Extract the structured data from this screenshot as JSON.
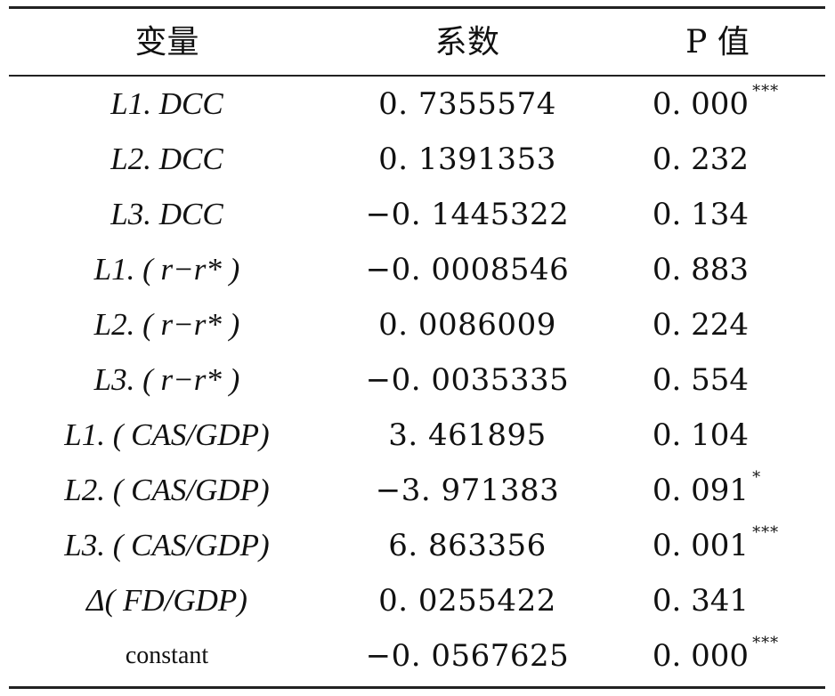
{
  "header": {
    "col_var": "变量",
    "col_coef": "系数",
    "col_p": "P 值"
  },
  "rows": [
    {
      "variable": "L1. DCC",
      "coef": "0. 7355574",
      "p": "0. 000",
      "stars": "***"
    },
    {
      "variable": "L2. DCC",
      "coef": "0. 1391353",
      "p": "0. 232",
      "stars": ""
    },
    {
      "variable": "L3. DCC",
      "coef": "−0. 1445322",
      "p": "0. 134",
      "stars": ""
    },
    {
      "variable": "L1. ( r−r* )",
      "coef": "−0. 0008546",
      "p": "0. 883",
      "stars": ""
    },
    {
      "variable": "L2. ( r−r* )",
      "coef": "0. 0086009",
      "p": "0. 224",
      "stars": ""
    },
    {
      "variable": "L3. ( r−r* )",
      "coef": "−0. 0035335",
      "p": "0. 554",
      "stars": ""
    },
    {
      "variable": "L1. ( CAS/GDP)",
      "coef": "3. 461895",
      "p": "0. 104",
      "stars": ""
    },
    {
      "variable": "L2. ( CAS/GDP)",
      "coef": "−3. 971383",
      "p": "0. 091",
      "stars": "*"
    },
    {
      "variable": "L3. ( CAS/GDP)",
      "coef": "6. 863356",
      "p": "0. 001",
      "stars": "***"
    },
    {
      "variable": "Δ( FD/GDP)",
      "coef": "0. 0255422",
      "p": "0. 341",
      "stars": ""
    },
    {
      "variable": "constant",
      "coef": "−0. 0567625",
      "p": "0. 000",
      "stars": "***"
    }
  ]
}
